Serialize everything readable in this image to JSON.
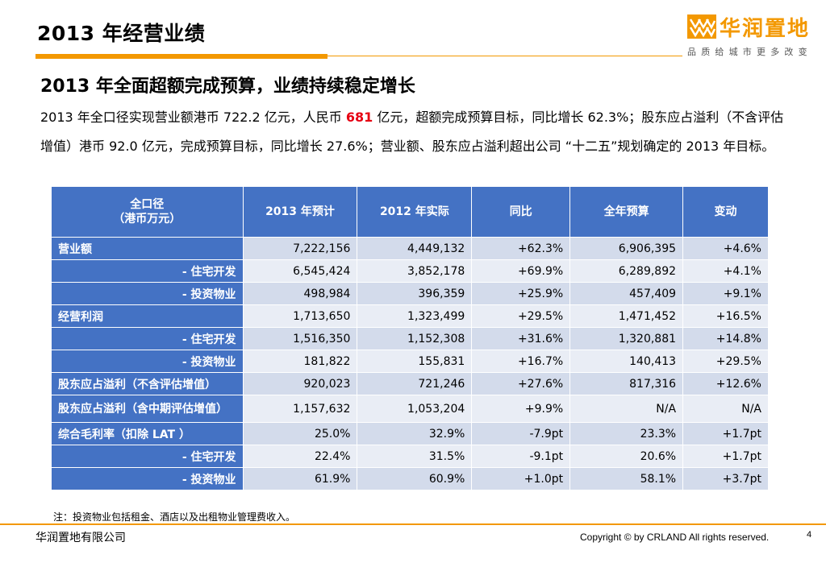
{
  "header": {
    "title": "2013 年经营业绩",
    "logo_name": "华润置地",
    "logo_slogan": "品质给城市更多改变"
  },
  "subtitle": "2013 年全面超额完成预算，业绩持续稳定增长",
  "description": {
    "part1": "2013 年全口径实现营业额港币 722.2 亿元，人民币 ",
    "highlight": "681",
    "part2": " 亿元，超额完成预算目标，同比增长 62.3%；股东应占溢利（不含评估增值）港币 92.0 亿元，完成预算目标，同比增长 27.6%；营业额、股东应占溢利超出公司 “十二五”规划确定的 2013 年目标。",
    "highlight_color": "#e60012"
  },
  "table": {
    "header_line1": "全口径",
    "header_line2": "（港币万元）",
    "columns": [
      "2013 年预计",
      "2012 年实际",
      "同比",
      "全年预算",
      "变动"
    ],
    "rows": [
      {
        "label": "营业额",
        "values": [
          "7,222,156",
          "4,449,132",
          "+62.3%",
          "6,906,395",
          "+4.6%"
        ]
      },
      {
        "label": "- 住宅开发",
        "values": [
          "6,545,424",
          "3,852,178",
          "+69.9%",
          "6,289,892",
          "+4.1%"
        ]
      },
      {
        "label": "- 投资物业",
        "values": [
          "498,984",
          "396,359",
          "+25.9%",
          "457,409",
          "+9.1%"
        ]
      },
      {
        "label": "经营利润",
        "values": [
          "1,713,650",
          "1,323,499",
          "+29.5%",
          "1,471,452",
          "+16.5%"
        ]
      },
      {
        "label": "- 住宅开发",
        "values": [
          "1,516,350",
          "1,152,308",
          "+31.6%",
          "1,320,881",
          "+14.8%"
        ]
      },
      {
        "label": "- 投资物业",
        "values": [
          "181,822",
          "155,831",
          "+16.7%",
          "140,413",
          "+29.5%"
        ]
      },
      {
        "label": "股东应占溢利（不含评估增值）",
        "values": [
          "920,023",
          "721,246",
          "+27.6%",
          "817,316",
          "+12.6%"
        ]
      },
      {
        "label": "股东应占溢利（含中期评估增值）",
        "values": [
          "1,157,632",
          "1,053,204",
          "+9.9%",
          "N/A",
          "N/A"
        ]
      },
      {
        "label": "综合毛利率（扣除 LAT ）",
        "values": [
          "25.0%",
          "32.9%",
          "-7.9pt",
          "23.3%",
          "+1.7pt"
        ]
      },
      {
        "label": "- 住宅开发",
        "values": [
          "22.4%",
          "31.5%",
          "-9.1pt",
          "20.6%",
          "+1.7pt"
        ]
      },
      {
        "label": "- 投资物业",
        "values": [
          "61.9%",
          "60.9%",
          "+1.0pt",
          "58.1%",
          "+3.7pt"
        ]
      }
    ]
  },
  "note": "注：投资物业包括租金、酒店以及出租物业管理费收入。",
  "footer": {
    "company": "华润置地有限公司",
    "copyright": "Copyright © by CRLAND All rights reserved.",
    "page_number": "4"
  },
  "colors": {
    "accent": "#f39800",
    "table_header": "#4472c4",
    "row_dark": "#d3dbeb",
    "row_light": "#e9edf5"
  }
}
